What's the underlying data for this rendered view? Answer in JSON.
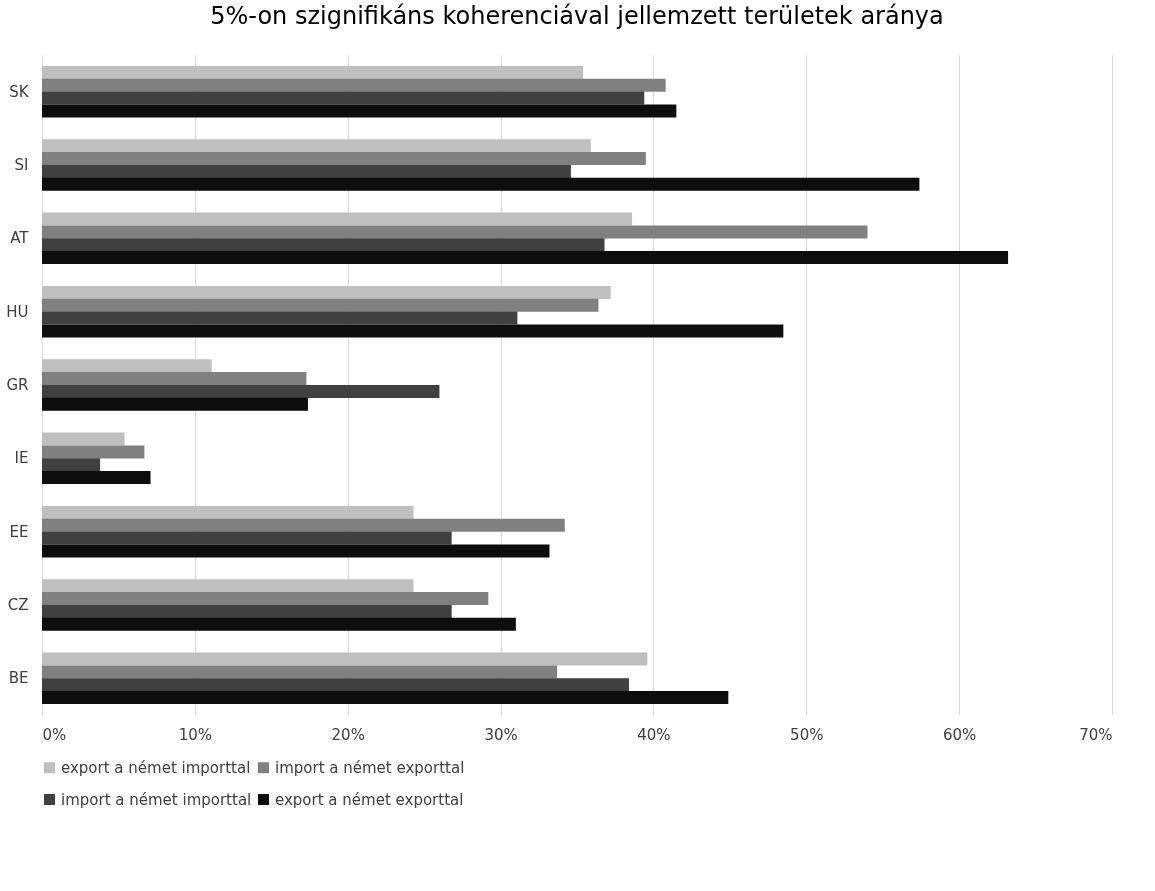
{
  "chart_data": {
    "type": "bar",
    "orientation": "horizontal",
    "title": "5%-on szignifikáns koherenciával jellemzett területek aránya",
    "categories": [
      "SK",
      "SI",
      "AT",
      "HU",
      "GR",
      "IE",
      "EE",
      "CZ",
      "BE"
    ],
    "series": [
      {
        "name": "export a német importtal",
        "color": "#bfbfbf",
        "values": [
          35.4,
          35.9,
          38.6,
          37.2,
          11.1,
          5.4,
          24.3,
          24.3,
          39.6
        ]
      },
      {
        "name": "import a német exporttal",
        "color": "#808080",
        "values": [
          40.8,
          39.5,
          54.0,
          36.4,
          17.3,
          6.7,
          34.2,
          29.2,
          33.7
        ]
      },
      {
        "name": "import a német importtal",
        "color": "#404040",
        "values": [
          39.4,
          34.6,
          36.8,
          31.1,
          26.0,
          3.8,
          26.8,
          26.8,
          38.4
        ]
      },
      {
        "name": "export a német exporttal",
        "color": "#0d0d0d",
        "values": [
          41.5,
          57.4,
          63.2,
          48.5,
          17.4,
          7.1,
          33.2,
          31.0,
          44.9
        ]
      }
    ],
    "xlim": [
      0,
      70
    ],
    "xticks": [
      {
        "value": 0,
        "label": "0%"
      },
      {
        "value": 10,
        "label": "10%"
      },
      {
        "value": 20,
        "label": "20%"
      },
      {
        "value": 30,
        "label": "30%"
      },
      {
        "value": 40,
        "label": "40%"
      },
      {
        "value": 50,
        "label": "50%"
      },
      {
        "value": 60,
        "label": "60%"
      },
      {
        "value": 70,
        "label": "70%"
      }
    ],
    "grid": "x",
    "legend": "bottom"
  }
}
